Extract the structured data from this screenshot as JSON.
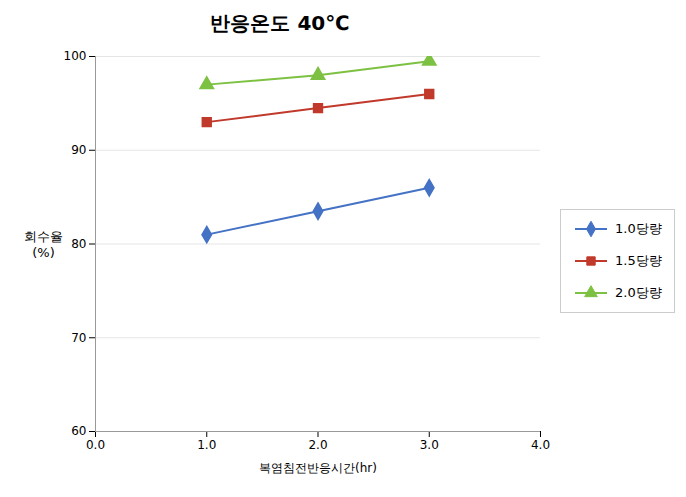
{
  "chart_data": {
    "type": "line",
    "title": "반응온도 40℃",
    "xlabel": "복염침전반응시간(hr)",
    "ylabel": "회수율\n(%)",
    "x": [
      1,
      2,
      3
    ],
    "series": [
      {
        "name": "1.0당량",
        "color": "#4472C4",
        "marker": "diamond",
        "values": [
          81.0,
          83.5,
          86.0
        ]
      },
      {
        "name": "1.5당량",
        "color": "#C0392B",
        "marker": "square",
        "values": [
          93.0,
          94.5,
          96.0
        ]
      },
      {
        "name": "2.0당량",
        "color": "#7DC142",
        "marker": "triangle",
        "values": [
          97.0,
          98.0,
          99.5
        ]
      }
    ],
    "xlim": [
      0,
      4
    ],
    "xticks": [
      0,
      1,
      2,
      3,
      4
    ],
    "ylim": [
      60,
      100
    ],
    "yticks": [
      60,
      70,
      80,
      90,
      100
    ],
    "grid": "y",
    "legend": "right"
  }
}
